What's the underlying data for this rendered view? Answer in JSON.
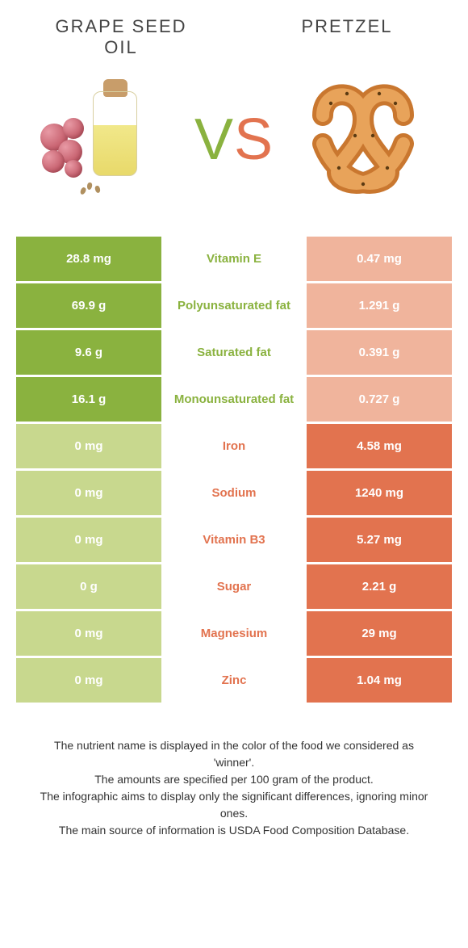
{
  "left_title": "GRAPE SEED\nOIL",
  "right_title": "PRETZEL",
  "vs": {
    "v": "V",
    "s": "S"
  },
  "colors": {
    "green": "#8ab23f",
    "orange": "#e2734f",
    "green_pale": "#c8d88e",
    "orange_pale": "#f0b49c"
  },
  "rows": [
    {
      "nutrient": "Vitamin E",
      "left": "28.8 mg",
      "right": "0.47 mg",
      "winner": "left"
    },
    {
      "nutrient": "Polyunsaturated fat",
      "left": "69.9 g",
      "right": "1.291 g",
      "winner": "left"
    },
    {
      "nutrient": "Saturated fat",
      "left": "9.6 g",
      "right": "0.391 g",
      "winner": "left"
    },
    {
      "nutrient": "Monounsaturated fat",
      "left": "16.1 g",
      "right": "0.727 g",
      "winner": "left"
    },
    {
      "nutrient": "Iron",
      "left": "0 mg",
      "right": "4.58 mg",
      "winner": "right"
    },
    {
      "nutrient": "Sodium",
      "left": "0 mg",
      "right": "1240 mg",
      "winner": "right"
    },
    {
      "nutrient": "Vitamin B3",
      "left": "0 mg",
      "right": "5.27 mg",
      "winner": "right"
    },
    {
      "nutrient": "Sugar",
      "left": "0 g",
      "right": "2.21 g",
      "winner": "right"
    },
    {
      "nutrient": "Magnesium",
      "left": "0 mg",
      "right": "29 mg",
      "winner": "right"
    },
    {
      "nutrient": "Zinc",
      "left": "0 mg",
      "right": "1.04 mg",
      "winner": "right"
    }
  ],
  "footer": [
    "The nutrient name is displayed in the color of the food we considered as 'winner'.",
    "The amounts are specified per 100 gram of the product.",
    "The infographic aims to display only the significant differences, ignoring minor ones.",
    "The main source of information is USDA Food Composition Database."
  ]
}
